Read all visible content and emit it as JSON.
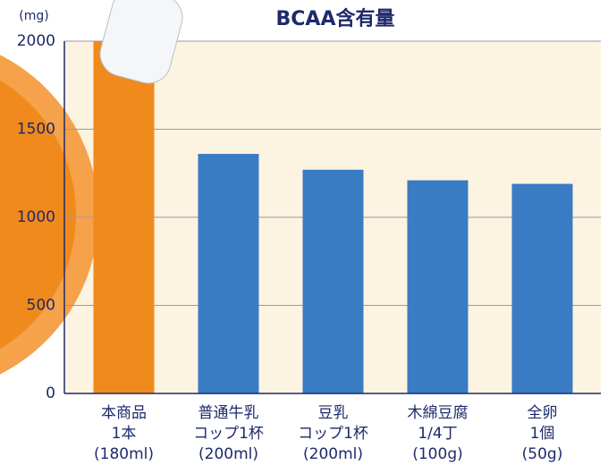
{
  "chart_data": {
    "type": "bar",
    "title": "BCAA含有量",
    "y_unit": "(mg)",
    "categories": [
      [
        "本商品",
        "1本",
        "(180ml)"
      ],
      [
        "普通牛乳",
        "コップ1杯",
        "(200ml)"
      ],
      [
        "豆乳",
        "コップ1杯",
        "(200ml)"
      ],
      [
        "木綿豆腐",
        "1/4丁",
        "(100g)"
      ],
      [
        "全卵",
        "1個",
        "(50g)"
      ]
    ],
    "values": [
      2000,
      1360,
      1270,
      1210,
      1190
    ],
    "colors": [
      "#f08a1c",
      "#3a7cc4",
      "#3a7cc4",
      "#3a7cc4",
      "#3a7cc4"
    ],
    "ylim": [
      0,
      2000
    ],
    "yticks": [
      0,
      500,
      1000,
      1500,
      2000
    ],
    "grid": true
  }
}
